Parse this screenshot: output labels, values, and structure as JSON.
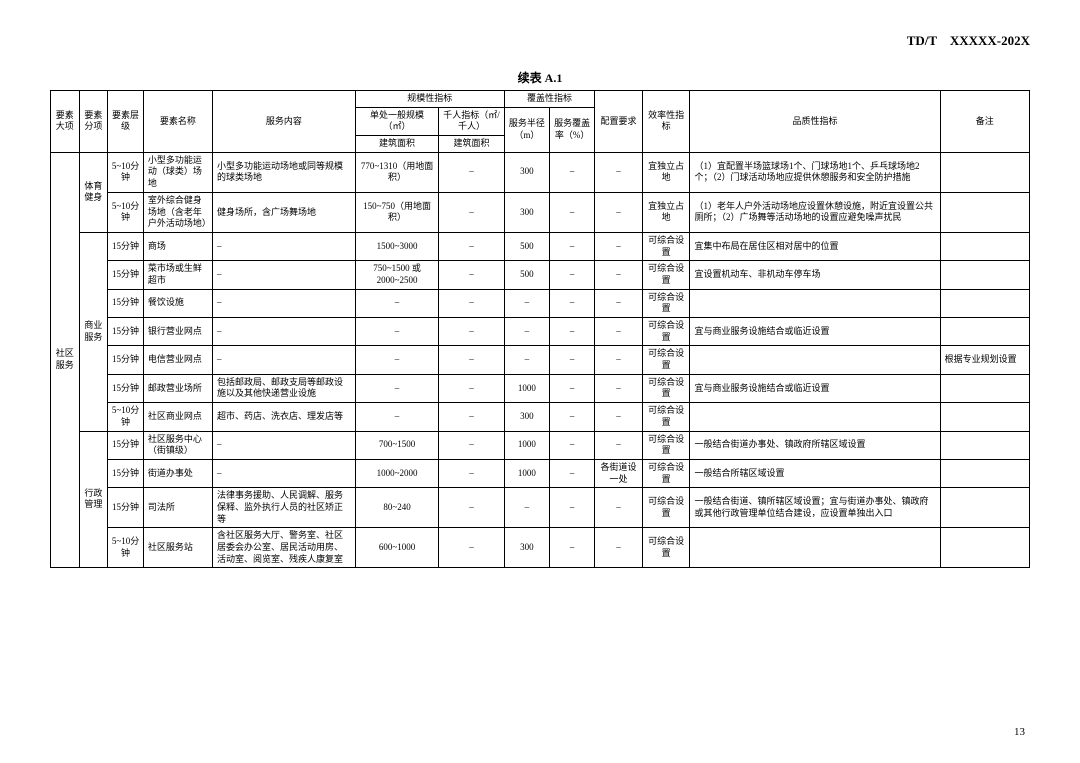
{
  "doc_code": "TD/T　XXXXX-202X",
  "table_title": "续表 A.1",
  "page_number": "13",
  "headers": {
    "c1": "要素大项",
    "c2": "要素分项",
    "c3": "要素层级",
    "c4": "要素名称",
    "c5": "服务内容",
    "g1": "规模性指标",
    "g1a": "单处一般规模（㎡）",
    "g1a2": "建筑面积",
    "g1b": "千人指标（㎡/千人）",
    "g1b2": "建筑面积",
    "g2": "覆盖性指标",
    "g2a": "服务半径（m）",
    "g2b": "服务覆盖率（%）",
    "c6": "配置要求",
    "c7": "效率性指标",
    "c8": "品质性指标",
    "c9": "备注"
  },
  "cat_major": "社区服务",
  "groups": [
    {
      "sub": "体育健身",
      "rows": [
        {
          "lvl": "5~10分钟",
          "name": "小型多功能运动（球类）场地",
          "svc": "小型多功能运动场地或同等规模的球类场地",
          "scale": "770~1310（用地面积）",
          "per": "–",
          "rad": "300",
          "cov": "–",
          "cfg": "–",
          "eff": "宜独立占地",
          "qual": "（1）宜配置半场篮球场1个、门球场地1个、乒乓球场地2个；（2）门球活动场地应提供休憩服务和安全防护措施",
          "note": ""
        },
        {
          "lvl": "5~10分钟",
          "name": "室外综合健身场地（含老年户外活动场地）",
          "svc": "健身场所，含广场舞场地",
          "scale": "150~750（用地面积）",
          "per": "–",
          "rad": "300",
          "cov": "–",
          "cfg": "–",
          "eff": "宜独立占地",
          "qual": "（1）老年人户外活动场地应设置休憩设施，附近宜设置公共厕所；（2）广场舞等活动场地的设置应避免噪声扰民",
          "note": ""
        }
      ]
    },
    {
      "sub": "商业服务",
      "rows": [
        {
          "lvl": "15分钟",
          "name": "商场",
          "svc": "–",
          "scale": "1500~3000",
          "per": "–",
          "rad": "500",
          "cov": "–",
          "cfg": "–",
          "eff": "可综合设置",
          "qual": "宜集中布局在居住区相对居中的位置",
          "note": ""
        },
        {
          "lvl": "15分钟",
          "name": "菜市场或生鲜超市",
          "svc": "–",
          "scale": "750~1500 或 2000~2500",
          "per": "–",
          "rad": "500",
          "cov": "–",
          "cfg": "–",
          "eff": "可综合设置",
          "qual": "宜设置机动车、非机动车停车场",
          "note": ""
        },
        {
          "lvl": "15分钟",
          "name": "餐饮设施",
          "svc": "–",
          "scale": "–",
          "per": "–",
          "rad": "–",
          "cov": "–",
          "cfg": "–",
          "eff": "可综合设置",
          "qual": "",
          "note": ""
        },
        {
          "lvl": "15分钟",
          "name": "银行营业网点",
          "svc": "–",
          "scale": "–",
          "per": "–",
          "rad": "–",
          "cov": "–",
          "cfg": "–",
          "eff": "可综合设置",
          "qual": "宜与商业服务设施结合或临近设置",
          "note": ""
        },
        {
          "lvl": "15分钟",
          "name": "电信营业网点",
          "svc": "–",
          "scale": "–",
          "per": "–",
          "rad": "–",
          "cov": "–",
          "cfg": "–",
          "eff": "可综合设置",
          "qual": "",
          "note": "根据专业规划设置"
        },
        {
          "lvl": "15分钟",
          "name": "邮政营业场所",
          "svc": "包括邮政局、邮政支局等邮政设施以及其他快递营业设施",
          "scale": "–",
          "per": "–",
          "rad": "1000",
          "cov": "–",
          "cfg": "–",
          "eff": "可综合设置",
          "qual": "宜与商业服务设施结合或临近设置",
          "note": ""
        },
        {
          "lvl": "5~10分钟",
          "name": "社区商业网点",
          "svc": "超市、药店、洗衣店、理发店等",
          "scale": "–",
          "per": "–",
          "rad": "300",
          "cov": "–",
          "cfg": "–",
          "eff": "可综合设置",
          "qual": "",
          "note": ""
        }
      ]
    },
    {
      "sub": "行政管理",
      "rows": [
        {
          "lvl": "15分钟",
          "name": "社区服务中心（街镇级）",
          "svc": "–",
          "scale": "700~1500",
          "per": "–",
          "rad": "1000",
          "cov": "–",
          "cfg": "–",
          "eff": "可综合设置",
          "qual": "一般结合街道办事处、镇政府所辖区域设置",
          "note": ""
        },
        {
          "lvl": "15分钟",
          "name": "街道办事处",
          "svc": "–",
          "scale": "1000~2000",
          "per": "–",
          "rad": "1000",
          "cov": "–",
          "cfg": "各街道设一处",
          "eff": "可综合设置",
          "qual": "一般结合所辖区域设置",
          "note": ""
        },
        {
          "lvl": "15分钟",
          "name": "司法所",
          "svc": "法律事务援助、人民调解、服务保释、监外执行人员的社区矫正等",
          "scale": "80~240",
          "per": "–",
          "rad": "–",
          "cov": "–",
          "cfg": "–",
          "eff": "可综合设置",
          "qual": "一般结合街道、镇所辖区域设置；宜与街道办事处、镇政府或其他行政管理单位结合建设，应设置单独出入口",
          "note": ""
        },
        {
          "lvl": "5~10分钟",
          "name": "社区服务站",
          "svc": "含社区服务大厅、警务室、社区居委会办公室、居民活动用房、活动室、阅览室、残疾人康复室",
          "scale": "600~1000",
          "per": "–",
          "rad": "300",
          "cov": "–",
          "cfg": "–",
          "eff": "可综合设置",
          "qual": "",
          "note": ""
        }
      ]
    }
  ]
}
